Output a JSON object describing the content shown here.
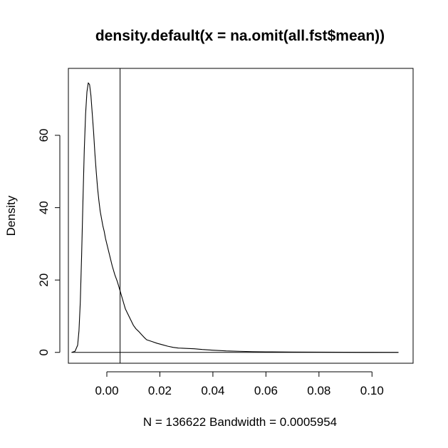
{
  "chart_data": {
    "type": "line",
    "title": "density.default(x = na.omit(all.fst$mean))",
    "xlabel": "N = 136622   Bandwidth = 0.0005954",
    "ylabel": "Density",
    "xlim": [
      -0.0145,
      0.1155
    ],
    "ylim": [
      -3,
      78.5
    ],
    "xticks": [
      0.0,
      0.02,
      0.04,
      0.06,
      0.08,
      0.1
    ],
    "xtick_labels": [
      "0.00",
      "0.02",
      "0.04",
      "0.06",
      "0.08",
      "0.10"
    ],
    "yticks": [
      0,
      20,
      40,
      60
    ],
    "ytick_labels": [
      "0",
      "20",
      "40",
      "60"
    ],
    "grid": false,
    "legend": "none",
    "vline": {
      "x": 0.005
    },
    "series": [
      {
        "x": [
          -0.0133,
          -0.012,
          -0.011,
          -0.0105,
          -0.01,
          -0.0095,
          -0.009,
          -0.0085,
          -0.008,
          -0.0075,
          -0.007,
          -0.0065,
          -0.006,
          -0.0055,
          -0.005,
          -0.0045,
          -0.004,
          -0.0035,
          -0.003,
          -0.0025,
          -0.002,
          -0.0015,
          -0.001,
          -0.0005,
          0.0,
          0.001,
          0.002,
          0.003,
          0.004,
          0.005,
          0.006,
          0.007,
          0.008,
          0.009,
          0.01,
          0.011,
          0.012,
          0.013,
          0.014,
          0.015,
          0.017,
          0.019,
          0.021,
          0.023,
          0.025,
          0.027,
          0.03,
          0.033,
          0.036,
          0.04,
          0.045,
          0.05,
          0.055,
          0.06,
          0.07,
          0.08,
          0.09,
          0.1,
          0.11
        ],
        "y": [
          0,
          0.3,
          2,
          6,
          14,
          27,
          42,
          56,
          66,
          72,
          74.5,
          74,
          71,
          66,
          61,
          55,
          50,
          45.5,
          42,
          39,
          37,
          35,
          33.5,
          31.5,
          30,
          27,
          24,
          21.5,
          19.5,
          17,
          14.5,
          12,
          10.5,
          9,
          7.5,
          6.5,
          5.8,
          5,
          4.2,
          3.5,
          3,
          2.5,
          2.1,
          1.7,
          1.4,
          1.2,
          1.1,
          1,
          0.8,
          0.6,
          0.4,
          0.3,
          0.2,
          0.15,
          0.1,
          0.06,
          0.03,
          0.02,
          0
        ]
      }
    ]
  }
}
